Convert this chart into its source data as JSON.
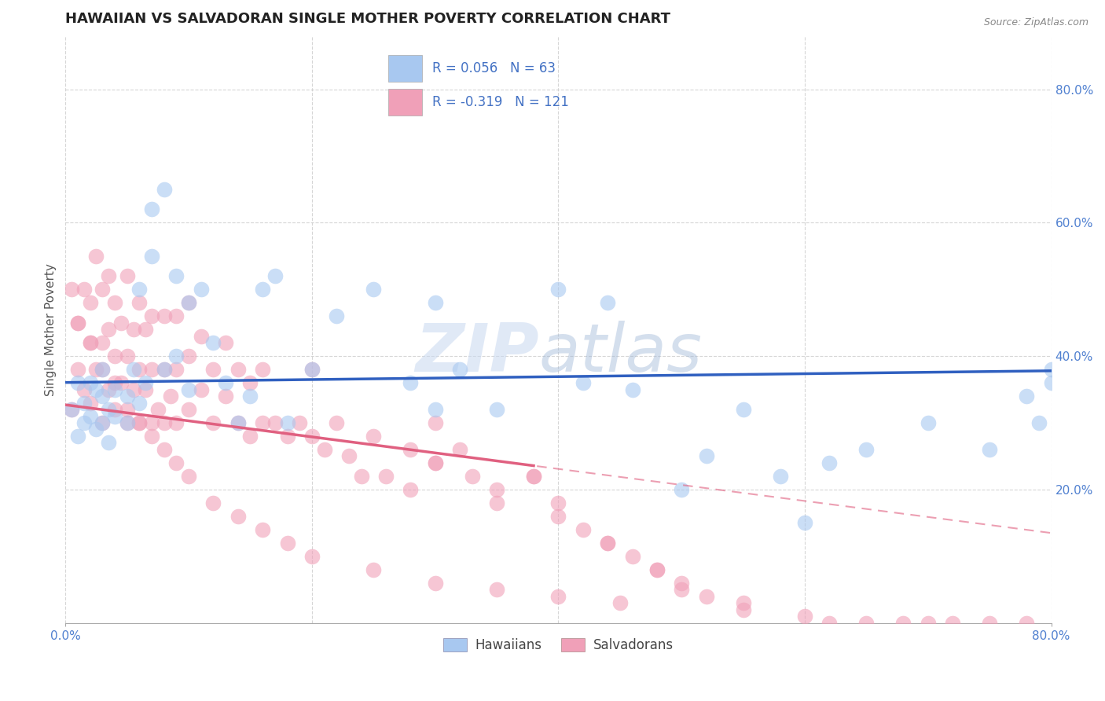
{
  "title": "HAWAIIAN VS SALVADORAN SINGLE MOTHER POVERTY CORRELATION CHART",
  "source_text": "Source: ZipAtlas.com",
  "ylabel": "Single Mother Poverty",
  "xlim": [
    0.0,
    0.8
  ],
  "ylim": [
    0.0,
    0.88
  ],
  "yticks_right": [
    0.2,
    0.4,
    0.6,
    0.8
  ],
  "xticks_show": [
    0.0,
    0.8
  ],
  "xticks_grid": [
    0.0,
    0.2,
    0.4,
    0.6,
    0.8
  ],
  "yticks_grid": [
    0.0,
    0.2,
    0.4,
    0.6,
    0.8
  ],
  "hawaiian_color": "#A8C8F0",
  "salvadoran_color": "#F0A0B8",
  "hawaiian_line_color": "#3060C0",
  "salvadoran_line_color": "#E06080",
  "salvadoran_line_solid_end": 0.38,
  "legend_text_color": "#4472C4",
  "R_hawaiian": 0.056,
  "N_hawaiian": 63,
  "R_salvadoran": -0.319,
  "N_salvadoran": 121,
  "watermark_ZIP": "ZIP",
  "watermark_atlas": "atlas",
  "background_color": "#FFFFFF",
  "grid_color": "#CCCCCC",
  "title_fontsize": 13,
  "axis_label_fontsize": 11,
  "tick_fontsize": 11,
  "right_tick_color": "#5080D0",
  "bottom_legend_hawaiians": "Hawaiians",
  "bottom_legend_salvadorans": "Salvadorans",
  "hawaiian_scatter_x": [
    0.005,
    0.01,
    0.01,
    0.015,
    0.015,
    0.02,
    0.02,
    0.025,
    0.025,
    0.03,
    0.03,
    0.03,
    0.035,
    0.035,
    0.04,
    0.04,
    0.05,
    0.05,
    0.055,
    0.06,
    0.06,
    0.065,
    0.07,
    0.07,
    0.08,
    0.08,
    0.09,
    0.09,
    0.1,
    0.1,
    0.11,
    0.12,
    0.13,
    0.14,
    0.15,
    0.16,
    0.17,
    0.18,
    0.2,
    0.22,
    0.25,
    0.28,
    0.3,
    0.3,
    0.32,
    0.35,
    0.4,
    0.42,
    0.44,
    0.46,
    0.5,
    0.52,
    0.55,
    0.58,
    0.6,
    0.62,
    0.65,
    0.7,
    0.75,
    0.78,
    0.79,
    0.8,
    0.8
  ],
  "hawaiian_scatter_y": [
    0.32,
    0.28,
    0.36,
    0.3,
    0.33,
    0.31,
    0.36,
    0.29,
    0.35,
    0.3,
    0.34,
    0.38,
    0.32,
    0.27,
    0.35,
    0.31,
    0.34,
    0.3,
    0.38,
    0.33,
    0.5,
    0.36,
    0.55,
    0.62,
    0.38,
    0.65,
    0.52,
    0.4,
    0.48,
    0.35,
    0.5,
    0.42,
    0.36,
    0.3,
    0.34,
    0.5,
    0.52,
    0.3,
    0.38,
    0.46,
    0.5,
    0.36,
    0.32,
    0.48,
    0.38,
    0.32,
    0.5,
    0.36,
    0.48,
    0.35,
    0.2,
    0.25,
    0.32,
    0.22,
    0.15,
    0.24,
    0.26,
    0.3,
    0.26,
    0.34,
    0.3,
    0.36,
    0.38
  ],
  "salvadoran_scatter_x": [
    0.005,
    0.01,
    0.01,
    0.015,
    0.015,
    0.02,
    0.02,
    0.02,
    0.025,
    0.025,
    0.03,
    0.03,
    0.03,
    0.035,
    0.035,
    0.035,
    0.04,
    0.04,
    0.04,
    0.045,
    0.045,
    0.05,
    0.05,
    0.05,
    0.055,
    0.055,
    0.06,
    0.06,
    0.06,
    0.065,
    0.065,
    0.07,
    0.07,
    0.07,
    0.075,
    0.08,
    0.08,
    0.08,
    0.085,
    0.09,
    0.09,
    0.09,
    0.1,
    0.1,
    0.1,
    0.11,
    0.11,
    0.12,
    0.12,
    0.13,
    0.13,
    0.14,
    0.14,
    0.15,
    0.15,
    0.16,
    0.16,
    0.17,
    0.18,
    0.19,
    0.2,
    0.2,
    0.21,
    0.22,
    0.23,
    0.24,
    0.25,
    0.26,
    0.28,
    0.3,
    0.3,
    0.32,
    0.33,
    0.35,
    0.38,
    0.4,
    0.42,
    0.44,
    0.46,
    0.48,
    0.5,
    0.52,
    0.55,
    0.28,
    0.3,
    0.35,
    0.38,
    0.4,
    0.44,
    0.48,
    0.5,
    0.55,
    0.6,
    0.62,
    0.65,
    0.68,
    0.7,
    0.72,
    0.75,
    0.78,
    0.005,
    0.01,
    0.02,
    0.03,
    0.04,
    0.05,
    0.06,
    0.07,
    0.08,
    0.09,
    0.1,
    0.12,
    0.14,
    0.16,
    0.18,
    0.2,
    0.25,
    0.3,
    0.35,
    0.4,
    0.45
  ],
  "salvadoran_scatter_y": [
    0.32,
    0.38,
    0.45,
    0.35,
    0.5,
    0.33,
    0.42,
    0.48,
    0.38,
    0.55,
    0.3,
    0.42,
    0.5,
    0.35,
    0.44,
    0.52,
    0.32,
    0.4,
    0.48,
    0.36,
    0.45,
    0.3,
    0.4,
    0.52,
    0.35,
    0.44,
    0.3,
    0.38,
    0.48,
    0.35,
    0.44,
    0.3,
    0.38,
    0.46,
    0.32,
    0.3,
    0.38,
    0.46,
    0.34,
    0.3,
    0.38,
    0.46,
    0.32,
    0.4,
    0.48,
    0.35,
    0.43,
    0.3,
    0.38,
    0.34,
    0.42,
    0.3,
    0.38,
    0.28,
    0.36,
    0.3,
    0.38,
    0.3,
    0.28,
    0.3,
    0.28,
    0.38,
    0.26,
    0.3,
    0.25,
    0.22,
    0.28,
    0.22,
    0.26,
    0.24,
    0.3,
    0.26,
    0.22,
    0.2,
    0.22,
    0.18,
    0.14,
    0.12,
    0.1,
    0.08,
    0.06,
    0.04,
    0.02,
    0.2,
    0.24,
    0.18,
    0.22,
    0.16,
    0.12,
    0.08,
    0.05,
    0.03,
    0.01,
    0.0,
    0.0,
    0.0,
    0.0,
    0.0,
    0.0,
    0.0,
    0.5,
    0.45,
    0.42,
    0.38,
    0.36,
    0.32,
    0.3,
    0.28,
    0.26,
    0.24,
    0.22,
    0.18,
    0.16,
    0.14,
    0.12,
    0.1,
    0.08,
    0.06,
    0.05,
    0.04,
    0.03
  ]
}
